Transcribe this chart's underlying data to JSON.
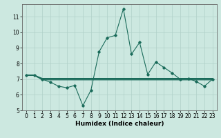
{
  "title": "",
  "xlabel": "Humidex (Indice chaleur)",
  "xlim": [
    -0.5,
    23.5
  ],
  "ylim": [
    5,
    11.8
  ],
  "yticks": [
    5,
    6,
    7,
    8,
    9,
    10,
    11
  ],
  "xticks": [
    0,
    1,
    2,
    3,
    4,
    5,
    6,
    7,
    8,
    9,
    10,
    11,
    12,
    13,
    14,
    15,
    16,
    17,
    18,
    19,
    20,
    21,
    22,
    23
  ],
  "bg_color": "#cce8e0",
  "grid_color": "#b0d0c8",
  "line_color": "#1a6b5a",
  "main_x": [
    0,
    1,
    2,
    3,
    4,
    5,
    6,
    7,
    8,
    9,
    10,
    11,
    12,
    13,
    14,
    15,
    16,
    17,
    18,
    19,
    20,
    21,
    22,
    23
  ],
  "main_y": [
    7.25,
    7.25,
    7.0,
    6.8,
    6.55,
    6.45,
    6.6,
    5.3,
    6.3,
    8.75,
    9.65,
    9.8,
    11.5,
    8.6,
    9.35,
    7.3,
    8.1,
    7.75,
    7.4,
    7.0,
    7.05,
    6.85,
    6.55,
    7.0
  ],
  "flat1_x": [
    0,
    1,
    2,
    3,
    4,
    5,
    6,
    7,
    8,
    9,
    10,
    11,
    12,
    13,
    14,
    15,
    16,
    17,
    18,
    19,
    20,
    21,
    22,
    23
  ],
  "flat1_y": [
    7.25,
    7.25,
    7.05,
    7.05,
    7.05,
    7.05,
    7.05,
    7.05,
    7.05,
    7.05,
    7.05,
    7.05,
    7.05,
    7.05,
    7.05,
    7.05,
    7.05,
    7.05,
    7.05,
    7.05,
    7.05,
    7.05,
    7.05,
    7.05
  ],
  "flat2_x": [
    0,
    1,
    2,
    3,
    4,
    5,
    6,
    7,
    8,
    9,
    10,
    11,
    12,
    13,
    14,
    15,
    16,
    17,
    18,
    19,
    20,
    21,
    22,
    23
  ],
  "flat2_y": [
    7.25,
    7.25,
    7.0,
    7.0,
    7.0,
    7.0,
    7.0,
    7.0,
    7.0,
    7.0,
    7.0,
    7.0,
    7.0,
    7.0,
    7.0,
    7.0,
    7.0,
    7.0,
    7.0,
    7.0,
    7.0,
    7.0,
    7.0,
    7.0
  ],
  "flat3_x": [
    0,
    1,
    2,
    3,
    4,
    5,
    6,
    7,
    8,
    9,
    10,
    11,
    12,
    13,
    14,
    15,
    16,
    17,
    18,
    19,
    20,
    21,
    22,
    23
  ],
  "flat3_y": [
    7.25,
    7.25,
    6.95,
    6.95,
    6.95,
    6.95,
    6.95,
    6.95,
    6.95,
    6.95,
    6.95,
    6.95,
    6.95,
    6.95,
    6.95,
    6.95,
    6.95,
    6.95,
    6.95,
    6.95,
    6.95,
    6.95,
    6.95,
    6.95
  ],
  "tick_fontsize": 5.5,
  "label_fontsize": 6.5
}
